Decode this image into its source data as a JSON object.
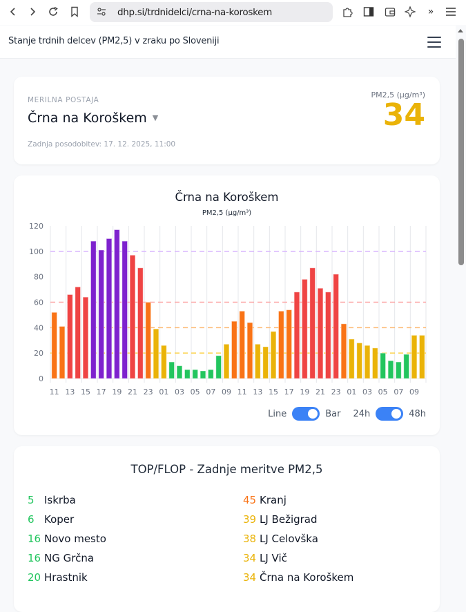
{
  "browser": {
    "url": "dhp.si/trdnidelci/crna-na-koroskem",
    "icons": [
      "back-icon",
      "forward-icon",
      "reload-icon",
      "bookmark-icon",
      "site-settings-icon",
      "extensions-icon",
      "sidebar-icon",
      "wallet-icon",
      "sparkle-icon",
      "overflow-icon",
      "menu-icon"
    ]
  },
  "header": {
    "title": "Stanje trdnih delcev (PM2,5) v zraku po Sloveniji"
  },
  "station": {
    "label": "MERILNA POSTAJA",
    "name": "Črna na Koroškem",
    "updated": "Zadnja posodobitev: 17. 12. 2025, 11:00",
    "pm_label": "PM2,5 (μg/m³)",
    "pm_value": "34",
    "pm_color": "#eab308"
  },
  "chart_data": {
    "type": "bar",
    "title": "Črna na Koroškem",
    "subtitle": "PM2,5 (μg/m³)",
    "xlabel": "",
    "ylabel": "PM2,5 (μg/m³)",
    "ylim": [
      0,
      120
    ],
    "yticks": [
      0,
      20,
      40,
      60,
      80,
      100,
      120
    ],
    "grid": true,
    "categories": [
      "11",
      "12",
      "13",
      "14",
      "15",
      "16",
      "17",
      "18",
      "19",
      "20",
      "21",
      "22",
      "23",
      "00",
      "01",
      "02",
      "03",
      "04",
      "05",
      "06",
      "07",
      "08",
      "09",
      "10",
      "11",
      "12",
      "13",
      "14",
      "15",
      "16",
      "17",
      "18",
      "19",
      "20",
      "21",
      "22",
      "23",
      "00",
      "01",
      "02",
      "03",
      "04",
      "05",
      "06",
      "07",
      "08",
      "09",
      "10"
    ],
    "xtick_labels": [
      "11",
      "13",
      "15",
      "17",
      "19",
      "21",
      "23",
      "01",
      "03",
      "05",
      "07",
      "09",
      "11",
      "13",
      "15",
      "17",
      "19",
      "21",
      "23",
      "01",
      "03",
      "05",
      "07",
      "09"
    ],
    "values": [
      52,
      41,
      66,
      72,
      64,
      108,
      101,
      110,
      117,
      108,
      97,
      87,
      60,
      39,
      26,
      13,
      10,
      7,
      7,
      6,
      7,
      18,
      27,
      45,
      53,
      44,
      27,
      25,
      37,
      53,
      54,
      68,
      78,
      87,
      71,
      68,
      82,
      43,
      31,
      28,
      26,
      24,
      20,
      14,
      13,
      19,
      34,
      34
    ],
    "thresholds": [
      {
        "value": 20,
        "color": "#fcd34d"
      },
      {
        "value": 40,
        "color": "#fdba74"
      },
      {
        "value": 60,
        "color": "#fca5a5"
      },
      {
        "value": 100,
        "color": "#d8b4fe"
      }
    ],
    "color_scale": [
      {
        "max": 20,
        "color": "#22c55e"
      },
      {
        "max": 40,
        "color": "#eab308"
      },
      {
        "max": 60,
        "color": "#f97316"
      },
      {
        "max": 100,
        "color": "#ef4444"
      },
      {
        "max": 9999,
        "color": "#7e22ce"
      }
    ]
  },
  "toggles": {
    "chart_type": {
      "left": "Line",
      "right": "Bar",
      "selected": "Bar"
    },
    "range": {
      "left": "24h",
      "right": "48h",
      "selected": "48h"
    }
  },
  "topflop": {
    "title": "TOP/FLOP - Zadnje meritve PM2,5",
    "top": [
      {
        "value": "5",
        "name": "Iskrba",
        "color": "#22c55e"
      },
      {
        "value": "6",
        "name": "Koper",
        "color": "#22c55e"
      },
      {
        "value": "16",
        "name": "Novo mesto",
        "color": "#22c55e"
      },
      {
        "value": "16",
        "name": "NG Grčna",
        "color": "#22c55e"
      },
      {
        "value": "20",
        "name": "Hrastnik",
        "color": "#22c55e"
      }
    ],
    "flop": [
      {
        "value": "45",
        "name": "Kranj",
        "color": "#f97316"
      },
      {
        "value": "39",
        "name": "LJ Bežigrad",
        "color": "#eab308"
      },
      {
        "value": "38",
        "name": "LJ Celovška",
        "color": "#eab308"
      },
      {
        "value": "34",
        "name": "LJ Vič",
        "color": "#eab308"
      },
      {
        "value": "34",
        "name": "Črna na Koroškem",
        "color": "#eab308"
      }
    ]
  }
}
